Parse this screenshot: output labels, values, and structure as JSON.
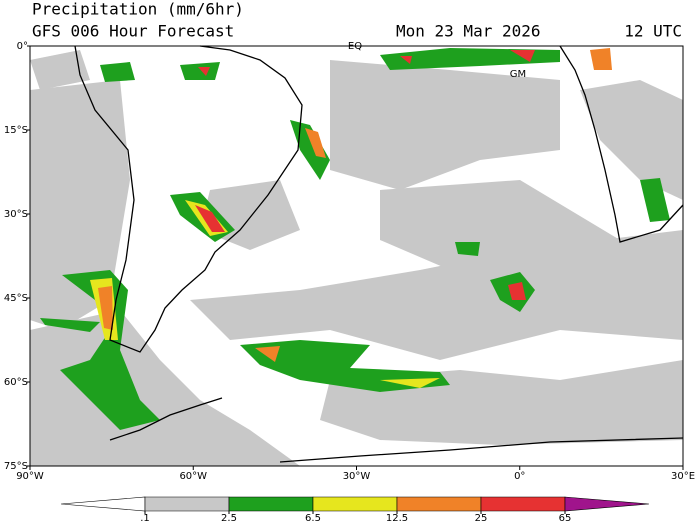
{
  "header": {
    "title": "Precipitation (mm/6hr)",
    "subtitle": "GFS 006 Hour Forecast",
    "date": "Mon 23 Mar 2026",
    "time": "12 UTC"
  },
  "map": {
    "xlim": [
      -90,
      30
    ],
    "ylim": [
      -75,
      0
    ],
    "xticks": [
      {
        "value": -90,
        "label": "90°W"
      },
      {
        "value": -60,
        "label": "60°W"
      },
      {
        "value": -30,
        "label": "30°W"
      },
      {
        "value": 0,
        "label": "0°"
      },
      {
        "value": 30,
        "label": "30°E"
      }
    ],
    "yticks": [
      {
        "value": 0,
        "label": "0°"
      },
      {
        "value": -15,
        "label": "15°S"
      },
      {
        "value": -30,
        "label": "30°S"
      },
      {
        "value": -45,
        "label": "45°S"
      },
      {
        "value": -60,
        "label": "60°S"
      },
      {
        "value": -75,
        "label": "75°S"
      }
    ],
    "labels": [
      "EQ",
      "GM"
    ]
  },
  "legend": {
    "ticks": [
      {
        "value": 0.1,
        "label": ".1"
      },
      2.5,
      6.5,
      12.5,
      25,
      65
    ],
    "colors": [
      "#ffffff",
      "#c8c8c8",
      "#1ea01e",
      "#e6e61e",
      "#f08228",
      "#e63232",
      "#a0148c"
    ]
  }
}
